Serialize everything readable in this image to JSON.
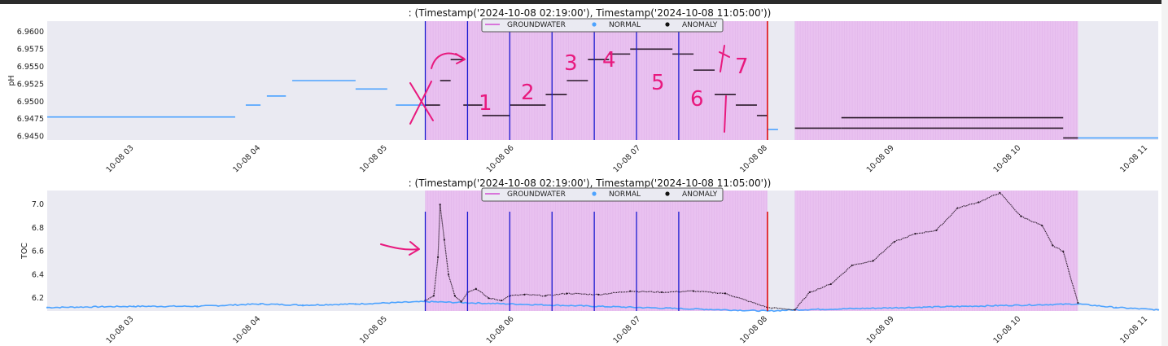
{
  "colors": {
    "plot_bg": "#eaeaf2",
    "normal": "#4da3ff",
    "anomaly": "#2a1a2a",
    "groundwater": "#d24dd2",
    "band": "#e9c1f0",
    "blue_line": "#1a1ad0",
    "red_line": "#e01010",
    "annotation": "#e8197e"
  },
  "chart_data": [
    {
      "type": "scatter",
      "title": ": (Timestamp('2024-10-08 02:19:00'), Timestamp('2024-10-08 11:05:00'))",
      "ylabel": "pH",
      "xlim": [
        "2024-10-08 02:19",
        "2024-10-08 11:05"
      ],
      "ylim": [
        6.9445,
        6.9615
      ],
      "yticks": [
        "6.9450",
        "6.9475",
        "6.9500",
        "6.9525",
        "6.9550",
        "6.9575",
        "6.9600"
      ],
      "xticks": [
        "10-08 03",
        "10-08 04",
        "10-08 05",
        "10-08 06",
        "10-08 07",
        "10-08 08",
        "10-08 09",
        "10-08 10",
        "10-08 11"
      ],
      "legend": {
        "placement": "top-center",
        "entries": [
          "GROUNDWATER",
          "NORMAL",
          "ANOMALY"
        ]
      },
      "groundwater_bands": [
        [
          "2024-10-08 05:18",
          "2024-10-08 08:00"
        ],
        [
          "2024-10-08 08:13",
          "2024-10-08 10:27"
        ]
      ],
      "vlines_blue": [
        "2024-10-08 05:18",
        "2024-10-08 05:38",
        "2024-10-08 05:58",
        "2024-10-08 06:18",
        "2024-10-08 06:38",
        "2024-10-08 06:58",
        "2024-10-08 07:18"
      ],
      "vlines_red": [
        "2024-10-08 08:00"
      ],
      "series": [
        {
          "name": "NORMAL",
          "segments": [
            {
              "x": [
                "2024-10-08 02:19",
                "2024-10-08 03:48"
              ],
              "y": 6.9478
            },
            {
              "x": [
                "2024-10-08 03:53",
                "2024-10-08 04:00"
              ],
              "y": 6.9495
            },
            {
              "x": [
                "2024-10-08 04:03",
                "2024-10-08 04:12"
              ],
              "y": 6.9508
            },
            {
              "x": [
                "2024-10-08 04:15",
                "2024-10-08 04:45"
              ],
              "y": 6.953
            },
            {
              "x": [
                "2024-10-08 04:45",
                "2024-10-08 05:00"
              ],
              "y": 6.9518
            },
            {
              "x": [
                "2024-10-08 05:04",
                "2024-10-08 05:18"
              ],
              "y": 6.9495
            },
            {
              "x": [
                "2024-10-08 08:00",
                "2024-10-08 08:05"
              ],
              "y": 6.946
            },
            {
              "x": [
                "2024-10-08 10:27",
                "2024-10-08 11:05"
              ],
              "y": 6.9448
            }
          ]
        },
        {
          "name": "ANOMALY",
          "segments": [
            {
              "x": [
                "2024-10-08 05:18",
                "2024-10-08 05:25"
              ],
              "y": 6.9495
            },
            {
              "x": [
                "2024-10-08 05:25",
                "2024-10-08 05:30"
              ],
              "y": 6.953
            },
            {
              "x": [
                "2024-10-08 05:30",
                "2024-10-08 05:36"
              ],
              "y": 6.956
            },
            {
              "x": [
                "2024-10-08 05:36",
                "2024-10-08 05:45"
              ],
              "y": 6.9495
            },
            {
              "x": [
                "2024-10-08 05:45",
                "2024-10-08 05:58"
              ],
              "y": 6.948
            },
            {
              "x": [
                "2024-10-08 05:58",
                "2024-10-08 06:15"
              ],
              "y": 6.9495
            },
            {
              "x": [
                "2024-10-08 06:15",
                "2024-10-08 06:25"
              ],
              "y": 6.951
            },
            {
              "x": [
                "2024-10-08 06:25",
                "2024-10-08 06:35"
              ],
              "y": 6.953
            },
            {
              "x": [
                "2024-10-08 06:35",
                "2024-10-08 06:45"
              ],
              "y": 6.956
            },
            {
              "x": [
                "2024-10-08 06:45",
                "2024-10-08 06:55"
              ],
              "y": 6.9568
            },
            {
              "x": [
                "2024-10-08 06:55",
                "2024-10-08 07:15"
              ],
              "y": 6.9575
            },
            {
              "x": [
                "2024-10-08 07:15",
                "2024-10-08 07:25"
              ],
              "y": 6.9568
            },
            {
              "x": [
                "2024-10-08 07:25",
                "2024-10-08 07:35"
              ],
              "y": 6.9545
            },
            {
              "x": [
                "2024-10-08 07:35",
                "2024-10-08 07:45"
              ],
              "y": 6.951
            },
            {
              "x": [
                "2024-10-08 07:45",
                "2024-10-08 07:55"
              ],
              "y": 6.9495
            },
            {
              "x": [
                "2024-10-08 07:55",
                "2024-10-08 08:00"
              ],
              "y": 6.948
            },
            {
              "x": [
                "2024-10-08 08:13",
                "2024-10-08 08:35"
              ],
              "y": 6.9462
            },
            {
              "x": [
                "2024-10-08 08:35",
                "2024-10-08 10:20"
              ],
              "y": 6.9477
            },
            {
              "x": [
                "2024-10-08 08:35",
                "2024-10-08 10:20"
              ],
              "y": 6.9462
            },
            {
              "x": [
                "2024-10-08 10:20",
                "2024-10-08 10:27"
              ],
              "y": 6.9448
            }
          ]
        }
      ]
    },
    {
      "type": "scatter",
      "title": ": (Timestamp('2024-10-08 02:19:00'), Timestamp('2024-10-08 11:05:00'))",
      "ylabel": "TOC",
      "xlim": [
        "2024-10-08 02:19",
        "2024-10-08 11:05"
      ],
      "ylim": [
        6.09,
        7.12
      ],
      "yticks": [
        "6.2",
        "6.4",
        "6.6",
        "6.8",
        "7.0"
      ],
      "xticks": [
        "10-08 03",
        "10-08 04",
        "10-08 05",
        "10-08 06",
        "10-08 07",
        "10-08 08",
        "10-08 09",
        "10-08 10",
        "10-08 11"
      ],
      "legend": {
        "placement": "top-center",
        "entries": [
          "GROUNDWATER",
          "NORMAL",
          "ANOMALY"
        ]
      },
      "groundwater_bands": [
        [
          "2024-10-08 05:18",
          "2024-10-08 08:00"
        ],
        [
          "2024-10-08 08:13",
          "2024-10-08 10:27"
        ]
      ],
      "vlines_blue": [
        "2024-10-08 05:18",
        "2024-10-08 05:38",
        "2024-10-08 05:58",
        "2024-10-08 06:18",
        "2024-10-08 06:38",
        "2024-10-08 06:58",
        "2024-10-08 07:18"
      ],
      "vlines_red": [
        "2024-10-08 08:00"
      ],
      "series": [
        {
          "name": "NORMAL",
          "x": [
            "2024-10-08 02:19",
            "2024-10-08 03:00",
            "2024-10-08 03:30",
            "2024-10-08 04:00",
            "2024-10-08 04:20",
            "2024-10-08 04:45",
            "2024-10-08 05:18",
            "2024-10-08 08:00",
            "2024-10-08 08:13",
            "2024-10-08 10:27",
            "2024-10-08 10:45",
            "2024-10-08 11:05"
          ],
          "y": [
            6.12,
            6.13,
            6.13,
            6.15,
            6.14,
            6.15,
            6.17,
            6.09,
            6.1,
            6.15,
            6.12,
            6.1
          ]
        },
        {
          "name": "ANOMALY",
          "x": [
            "2024-10-08 05:18",
            "2024-10-08 05:22",
            "2024-10-08 05:24",
            "2024-10-08 05:25",
            "2024-10-08 05:27",
            "2024-10-08 05:29",
            "2024-10-08 05:32",
            "2024-10-08 05:35",
            "2024-10-08 05:38",
            "2024-10-08 05:42",
            "2024-10-08 05:48",
            "2024-10-08 05:54",
            "2024-10-08 05:58",
            "2024-10-08 06:05",
            "2024-10-08 06:15",
            "2024-10-08 06:25",
            "2024-10-08 06:40",
            "2024-10-08 06:55",
            "2024-10-08 07:10",
            "2024-10-08 07:25",
            "2024-10-08 07:40",
            "2024-10-08 08:00",
            "2024-10-08 08:13",
            "2024-10-08 08:20",
            "2024-10-08 08:30",
            "2024-10-08 08:40",
            "2024-10-08 08:50",
            "2024-10-08 09:00",
            "2024-10-08 09:10",
            "2024-10-08 09:20",
            "2024-10-08 09:30",
            "2024-10-08 09:40",
            "2024-10-08 09:50",
            "2024-10-08 10:00",
            "2024-10-08 10:10",
            "2024-10-08 10:15",
            "2024-10-08 10:20",
            "2024-10-08 10:27"
          ],
          "y": [
            6.18,
            6.22,
            6.55,
            7.0,
            6.7,
            6.4,
            6.22,
            6.17,
            6.25,
            6.28,
            6.2,
            6.18,
            6.22,
            6.23,
            6.22,
            6.24,
            6.23,
            6.26,
            6.25,
            6.26,
            6.24,
            6.12,
            6.1,
            6.25,
            6.32,
            6.48,
            6.52,
            6.68,
            6.75,
            6.78,
            6.97,
            7.02,
            7.1,
            6.9,
            6.82,
            6.65,
            6.6,
            6.16
          ]
        }
      ]
    }
  ],
  "annotations": {
    "labels": [
      "1",
      "2",
      "3",
      "4",
      "5",
      "6",
      "7",
      "X"
    ]
  }
}
